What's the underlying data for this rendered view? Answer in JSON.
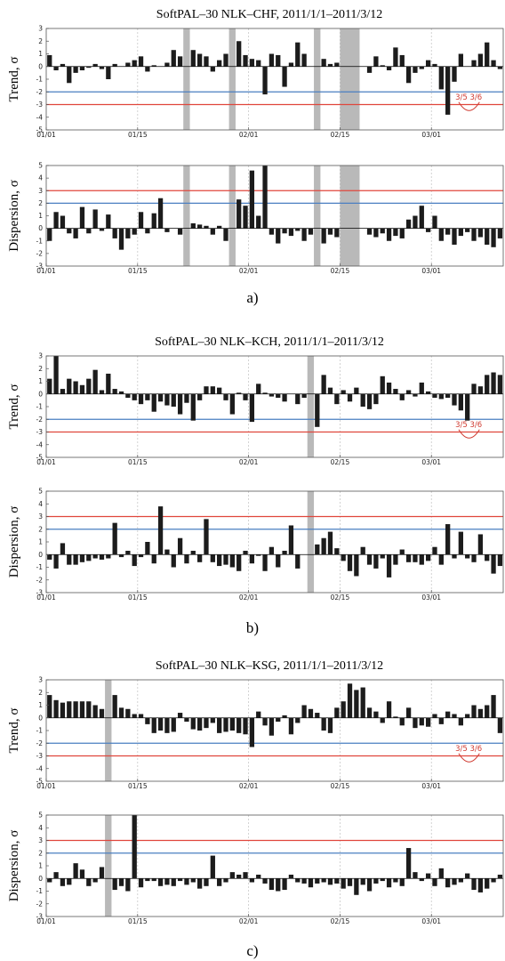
{
  "panels": [
    {
      "title": "SoftPAL–30 NLK–CHF, 2011/1/1–2011/3/12",
      "label": "a)",
      "annotations": [
        "3/5",
        "3/6"
      ],
      "chart_data": [
        {
          "type": "bar",
          "ylabel": "Trend, σ",
          "ylim": [
            -5,
            3
          ],
          "yticks": [
            3,
            2,
            1,
            0,
            -1,
            -2,
            -3,
            -4,
            -5
          ],
          "xticks": [
            "01/01",
            "01/15",
            "02/01",
            "02/15",
            "03/01"
          ],
          "xlim_days": [
            0,
            70
          ],
          "thresholds": [
            {
              "value": -2,
              "color": "#4a7fc1"
            },
            {
              "value": -3,
              "color": "#e0463c"
            }
          ],
          "gaps": [
            [
              21,
              22
            ],
            [
              28,
              29
            ],
            [
              41,
              42
            ],
            [
              45,
              48
            ]
          ],
          "values": [
            0.9,
            -0.3,
            0.2,
            -1.3,
            -0.5,
            -0.3,
            -0.1,
            0.2,
            -0.2,
            -1.0,
            0.2,
            0.0,
            0.3,
            0.5,
            0.8,
            -0.4,
            0.1,
            0.0,
            0.3,
            1.3,
            0.8,
            0,
            1.3,
            1.0,
            0.8,
            -0.4,
            0.5,
            1.0,
            0,
            2.0,
            0.9,
            0.6,
            0.5,
            -2.2,
            1.0,
            0.9,
            -1.6,
            0.3,
            1.9,
            1.0,
            0.0,
            0,
            0.6,
            0.2,
            0.3,
            0,
            0,
            0,
            0,
            -0.5,
            0.8,
            0.1,
            -0.3,
            1.5,
            0.9,
            -1.3,
            -0.5,
            -0.2,
            0.5,
            0.2,
            -1.8,
            -3.8,
            -1.2,
            1.0,
            0.0,
            0.5,
            1.0,
            1.9,
            0.5,
            -0.2
          ]
        },
        {
          "type": "bar",
          "ylabel": "Dispersion, σ",
          "ylim": [
            -3,
            5
          ],
          "yticks": [
            5,
            4,
            3,
            2,
            1,
            0,
            -1,
            -2,
            -3
          ],
          "xticks": [
            "01/01",
            "01/15",
            "02/01",
            "02/15",
            "03/01"
          ],
          "xlim_days": [
            0,
            70
          ],
          "thresholds": [
            {
              "value": 3,
              "color": "#e0463c"
            },
            {
              "value": 2,
              "color": "#4a7fc1"
            }
          ],
          "gaps": [
            [
              21,
              22
            ],
            [
              28,
              29
            ],
            [
              41,
              42
            ],
            [
              45,
              48
            ]
          ],
          "values": [
            -1.0,
            1.3,
            1.0,
            -0.4,
            -0.8,
            1.7,
            -0.4,
            1.5,
            -0.2,
            1.1,
            -0.8,
            -1.7,
            -0.8,
            -0.5,
            1.3,
            -0.4,
            1.2,
            2.4,
            -0.3,
            0.0,
            -0.5,
            0,
            0.4,
            0.3,
            0.2,
            -0.5,
            0.2,
            -1.0,
            0,
            2.3,
            1.8,
            4.6,
            1.0,
            5.0,
            -0.5,
            -1.2,
            -0.4,
            -0.6,
            -0.2,
            -1.0,
            -0.5,
            0,
            -1.2,
            -0.5,
            -0.7,
            0,
            0,
            0,
            0,
            -0.5,
            -0.7,
            -0.4,
            -1.0,
            -0.6,
            -0.8,
            0.7,
            1.0,
            1.8,
            -0.3,
            1.0,
            -1.0,
            -0.5,
            -1.3,
            -0.6,
            -0.3,
            -1.0,
            -0.7,
            -1.3,
            -1.5,
            -0.8
          ]
        }
      ]
    },
    {
      "title": "SoftPAL–30 NLK–KCH, 2011/1/1–2011/3/12",
      "label": "b)",
      "annotations": [
        "3/5",
        "3/6"
      ],
      "chart_data": [
        {
          "type": "bar",
          "ylabel": "Trend, σ",
          "ylim": [
            -5,
            3
          ],
          "yticks": [
            3,
            2,
            1,
            0,
            -1,
            -2,
            -3,
            -4,
            -5
          ],
          "xticks": [
            "01/01",
            "01/15",
            "02/01",
            "02/15",
            "03/01"
          ],
          "xlim_days": [
            0,
            70
          ],
          "thresholds": [
            {
              "value": -2,
              "color": "#4a7fc1"
            },
            {
              "value": -3,
              "color": "#e0463c"
            }
          ],
          "gaps": [
            [
              40,
              41
            ]
          ],
          "values": [
            1.2,
            3.0,
            0.4,
            1.2,
            1.0,
            0.7,
            1.2,
            1.9,
            0.3,
            1.6,
            0.4,
            0.2,
            -0.3,
            -0.5,
            -0.8,
            -0.5,
            -1.4,
            -0.6,
            -0.9,
            -1.0,
            -1.6,
            -0.7,
            -2.1,
            -0.5,
            0.6,
            0.6,
            0.5,
            -0.5,
            -1.6,
            0.1,
            -0.5,
            -2.2,
            0.8,
            0.1,
            -0.2,
            -0.3,
            -0.6,
            0.0,
            -0.8,
            -0.3,
            0,
            -2.6,
            1.5,
            0.5,
            -0.8,
            0.3,
            -0.6,
            0.5,
            -1.0,
            -1.2,
            -0.8,
            1.4,
            0.9,
            0.4,
            -0.5,
            0.3,
            -0.2,
            0.9,
            0.2,
            -0.3,
            -0.4,
            -0.3,
            -0.9,
            -1.3,
            -2.1,
            0.8,
            0.6,
            1.5,
            1.7,
            1.5
          ]
        },
        {
          "type": "bar",
          "ylabel": "Dispersion, σ",
          "ylim": [
            -3,
            5
          ],
          "yticks": [
            5,
            4,
            3,
            2,
            1,
            0,
            -1,
            -2,
            -3
          ],
          "xticks": [
            "01/01",
            "01/15",
            "02/01",
            "02/15",
            "03/01"
          ],
          "xlim_days": [
            0,
            70
          ],
          "thresholds": [
            {
              "value": 3,
              "color": "#e0463c"
            },
            {
              "value": 2,
              "color": "#4a7fc1"
            }
          ],
          "gaps": [
            [
              40,
              41
            ]
          ],
          "values": [
            -0.4,
            -1.1,
            0.9,
            -0.8,
            -0.8,
            -0.6,
            -0.5,
            -0.3,
            -0.4,
            -0.3,
            2.5,
            -0.2,
            0.3,
            -0.9,
            -0.2,
            1.0,
            -0.7,
            3.8,
            0.4,
            -1.0,
            1.3,
            -0.7,
            0.3,
            -0.6,
            2.8,
            -0.6,
            -0.9,
            -0.8,
            -1.0,
            -1.3,
            0.3,
            -0.7,
            -0.1,
            -1.3,
            0.6,
            -1.0,
            0.3,
            2.3,
            -1.1,
            0,
            0,
            0.8,
            1.3,
            1.8,
            0.5,
            -0.5,
            -1.3,
            -1.7,
            0.6,
            -0.8,
            -1.1,
            -0.3,
            -1.8,
            -0.8,
            0.4,
            -0.6,
            -0.6,
            -0.8,
            -0.5,
            0.6,
            -0.8,
            2.4,
            -0.3,
            1.8,
            -0.3,
            -0.6,
            1.6,
            -0.5,
            -1.5,
            -0.9
          ]
        }
      ]
    },
    {
      "title": "SoftPAL–30 NLK–KSG, 2011/1/1–2011/3/12",
      "label": "c)",
      "annotations": [
        "3/5",
        "3/6"
      ],
      "chart_data": [
        {
          "type": "bar",
          "ylabel": "Trend, σ",
          "ylim": [
            -5,
            3
          ],
          "yticks": [
            3,
            2,
            1,
            0,
            -1,
            -2,
            -3,
            -4,
            -5
          ],
          "xticks": [
            "01/01",
            "01/15",
            "02/01",
            "02/15",
            "03/01"
          ],
          "xlim_days": [
            0,
            70
          ],
          "thresholds": [
            {
              "value": -2,
              "color": "#4a7fc1"
            },
            {
              "value": -3,
              "color": "#e0463c"
            }
          ],
          "gaps": [
            [
              9,
              10
            ]
          ],
          "values": [
            1.8,
            1.4,
            1.2,
            1.3,
            1.3,
            1.3,
            1.3,
            1.0,
            0.7,
            0,
            1.8,
            0.8,
            0.7,
            0.3,
            0.3,
            -0.5,
            -1.2,
            -1.0,
            -1.2,
            -1.1,
            0.4,
            -0.3,
            -0.9,
            -1.0,
            -0.8,
            -0.4,
            -1.2,
            -1.1,
            -1.0,
            -1.2,
            -1.3,
            -2.3,
            0.5,
            -0.6,
            -1.4,
            -0.3,
            0.2,
            -1.3,
            -0.4,
            1.0,
            0.7,
            0.4,
            -1.0,
            -1.2,
            0.8,
            1.3,
            2.7,
            2.2,
            2.4,
            0.8,
            0.5,
            -0.4,
            1.3,
            0.1,
            -0.6,
            0.8,
            -0.8,
            -0.6,
            -0.7,
            0.3,
            -0.5,
            0.5,
            0.3,
            -0.6,
            0.3,
            1.0,
            0.7,
            1.0,
            1.8,
            -1.2
          ]
        },
        {
          "type": "bar",
          "ylabel": "Dispersion, σ",
          "ylim": [
            -3,
            5
          ],
          "yticks": [
            5,
            4,
            3,
            2,
            1,
            0,
            -1,
            -2,
            -3
          ],
          "xticks": [
            "01/01",
            "01/15",
            "02/01",
            "02/15",
            "03/01"
          ],
          "xlim_days": [
            0,
            70
          ],
          "thresholds": [
            {
              "value": 3,
              "color": "#e0463c"
            },
            {
              "value": 2,
              "color": "#4a7fc1"
            }
          ],
          "gaps": [
            [
              9,
              10
            ]
          ],
          "values": [
            -0.3,
            0.5,
            -0.6,
            -0.5,
            1.2,
            0.7,
            -0.6,
            -0.3,
            0.9,
            0,
            -0.9,
            -0.6,
            -1.0,
            5.0,
            -0.7,
            -0.2,
            -0.2,
            -0.6,
            -0.5,
            -0.6,
            -0.2,
            -0.5,
            -0.3,
            -0.8,
            -0.6,
            1.8,
            -0.6,
            -0.3,
            0.5,
            0.3,
            0.5,
            -0.3,
            0.3,
            -0.4,
            -0.9,
            -1.0,
            -0.9,
            0.3,
            -0.3,
            -0.4,
            -0.7,
            -0.4,
            -0.3,
            -0.5,
            -0.4,
            -0.8,
            -0.6,
            -1.3,
            -0.5,
            -1.0,
            -0.4,
            -0.2,
            -0.7,
            -0.3,
            -0.6,
            2.4,
            0.5,
            -0.2,
            0.4,
            -0.6,
            0.8,
            -0.7,
            -0.5,
            -0.3,
            0.4,
            -0.9,
            -1.1,
            -0.8,
            -0.3,
            0.3
          ]
        }
      ]
    }
  ]
}
